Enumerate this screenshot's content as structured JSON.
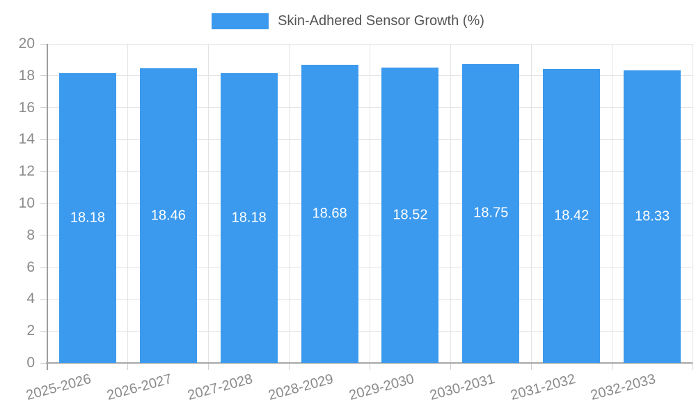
{
  "chart_data": {
    "type": "bar",
    "title": "Skin-Adhered Sensor Growth (%)",
    "legend_position": "top",
    "categories": [
      "2025-2026",
      "2026-2027",
      "2027-2028",
      "2028-2029",
      "2029-2030",
      "2030-2031",
      "2031-2032",
      "2032-2033"
    ],
    "series": [
      {
        "name": "Skin-Adhered Sensor Growth (%)",
        "values": [
          18.18,
          18.46,
          18.18,
          18.68,
          18.52,
          18.75,
          18.42,
          18.33
        ]
      }
    ],
    "value_labels": [
      "18.18",
      "18.46",
      "18.18",
      "18.68",
      "18.52",
      "18.75",
      "18.42",
      "18.33"
    ],
    "xlabel": "",
    "ylabel": "",
    "ylim": [
      0,
      20
    ],
    "yticks": [
      0,
      2,
      4,
      6,
      8,
      10,
      12,
      14,
      16,
      18,
      20
    ],
    "grid": true,
    "x_label_rotation_deg": -15,
    "colors": {
      "bar": "#3C9AEE",
      "grid": "#e4e4e4",
      "axis": "#a0a0a0",
      "axis_text": "#8a8a8a",
      "legend_text": "#545454",
      "value_text": "#ffffff",
      "background": "#ffffff"
    }
  }
}
